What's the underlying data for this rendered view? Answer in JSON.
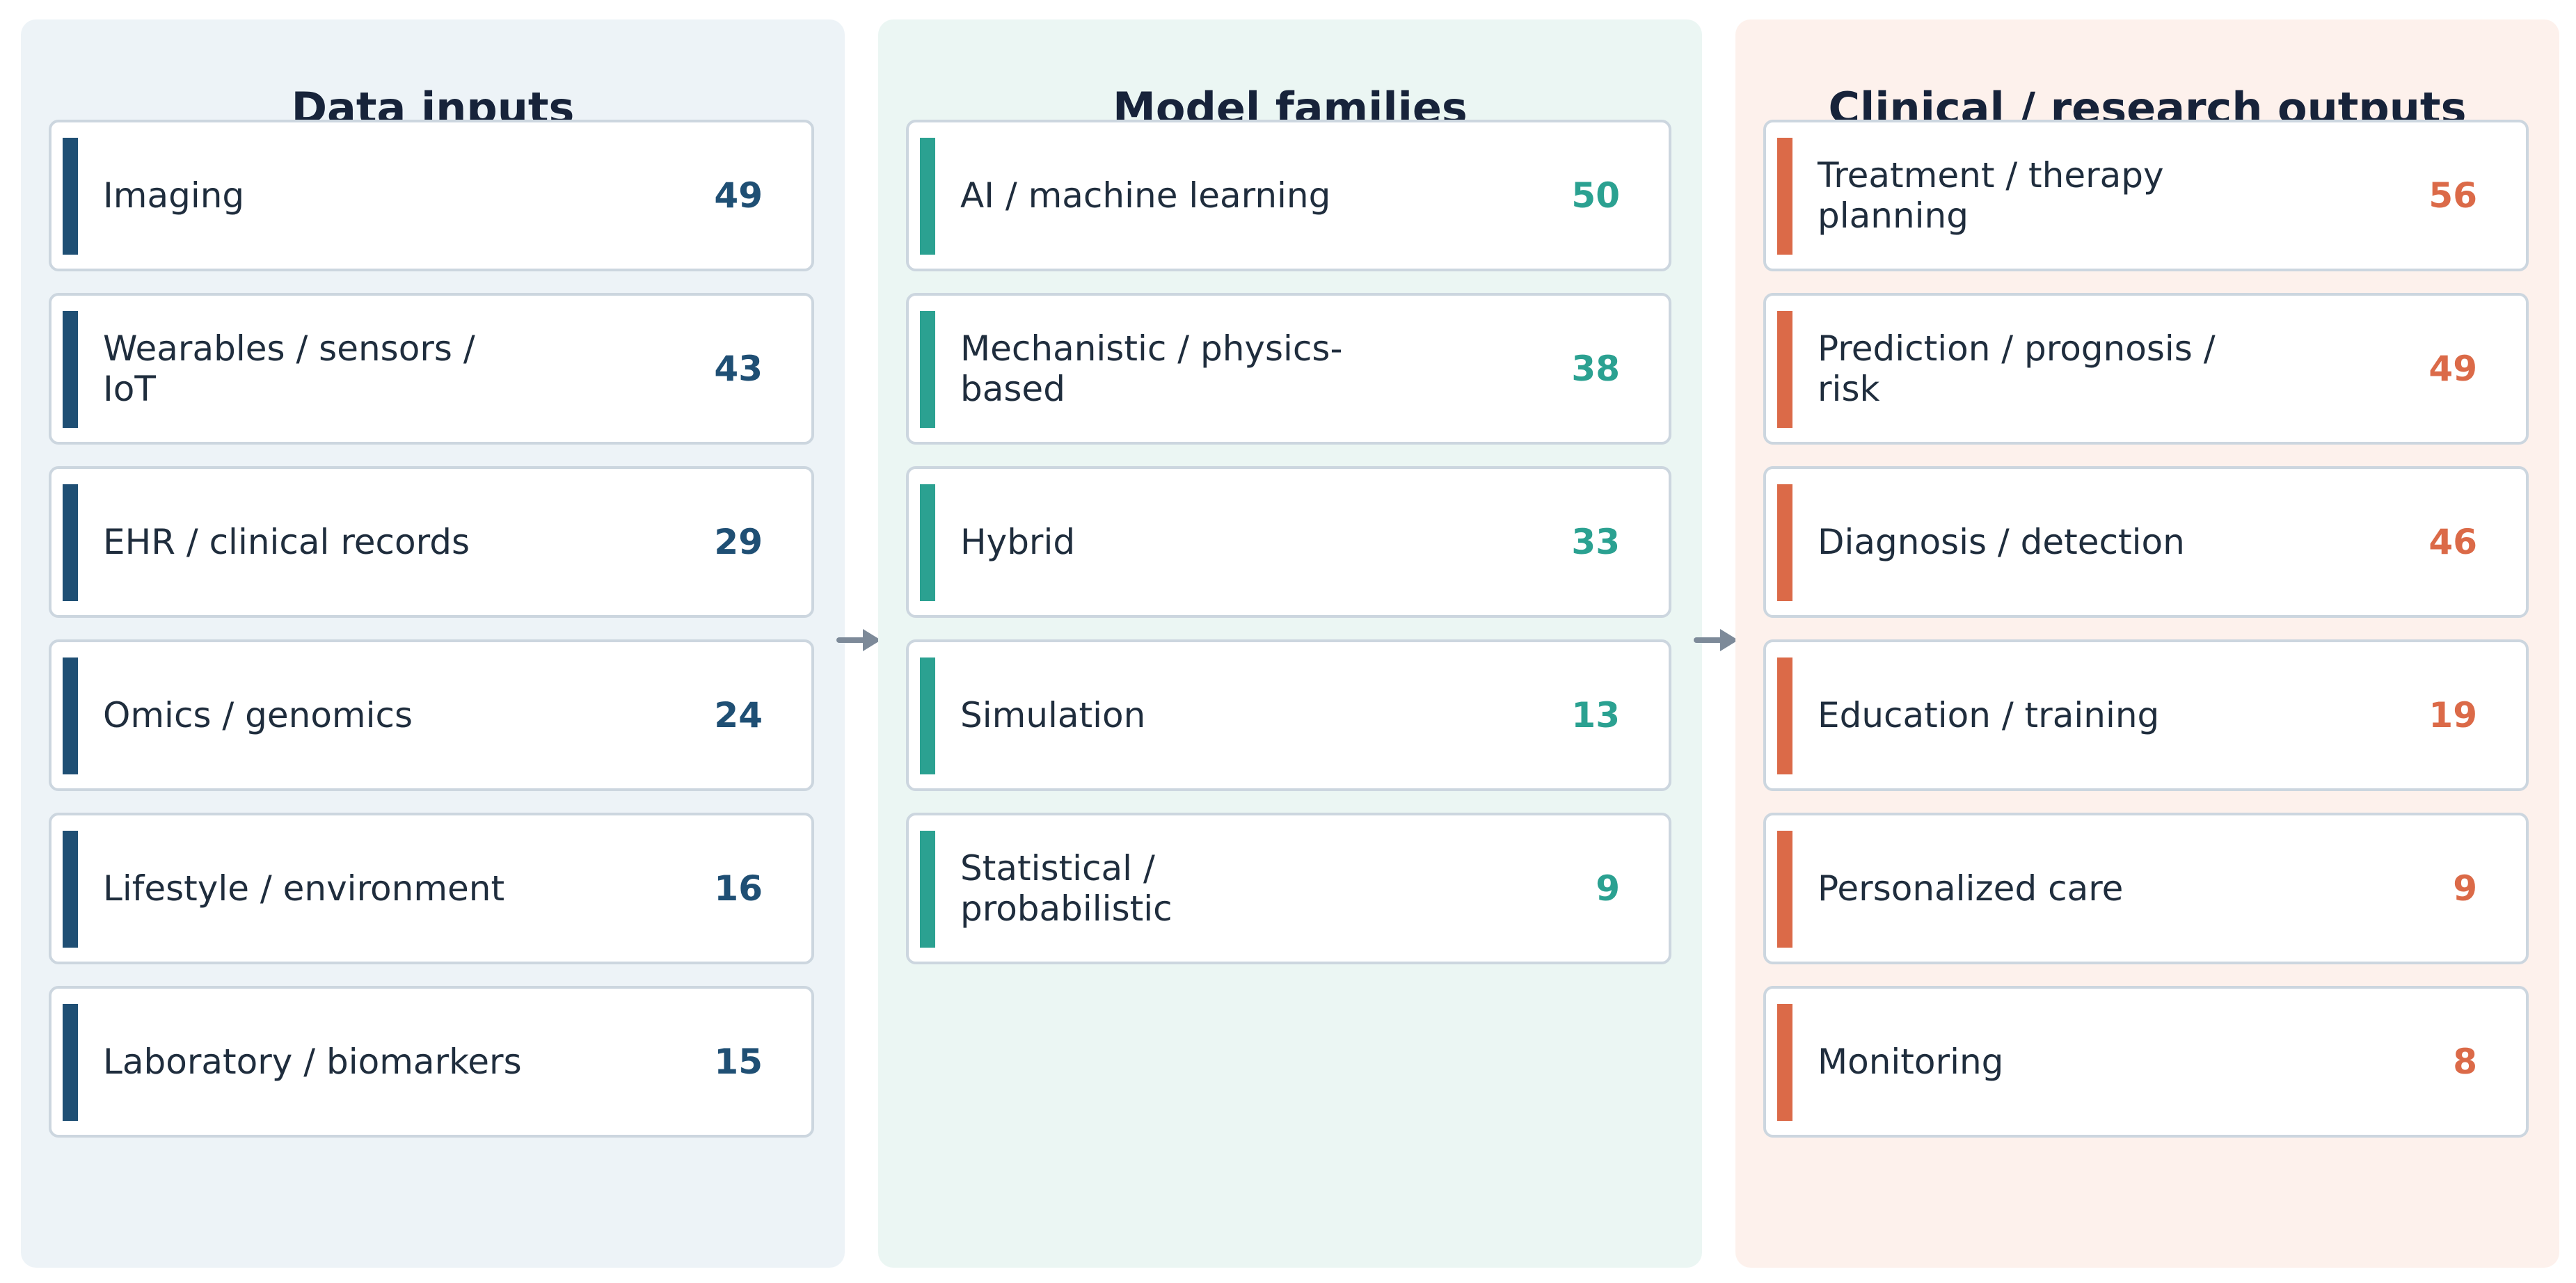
{
  "columns": [
    {
      "title": "Data inputs",
      "items": [
        {
          "label": "Imaging",
          "count": "49"
        },
        {
          "label": "Wearables / sensors / IoT",
          "count": "43"
        },
        {
          "label": "EHR / clinical records",
          "count": "29"
        },
        {
          "label": "Omics / genomics",
          "count": "24"
        },
        {
          "label": "Lifestyle / environment",
          "count": "16"
        },
        {
          "label": "Laboratory / biomarkers",
          "count": "15"
        }
      ]
    },
    {
      "title": "Model families",
      "items": [
        {
          "label": "AI / machine learning",
          "count": "50"
        },
        {
          "label": "Mechanistic / physics-based",
          "count": "38"
        },
        {
          "label": "Hybrid",
          "count": "33"
        },
        {
          "label": "Simulation",
          "count": "13"
        },
        {
          "label": "Statistical / probabilistic",
          "count": "9"
        }
      ]
    },
    {
      "title": "Clinical / research outputs",
      "items": [
        {
          "label": "Treatment / therapy planning",
          "count": "56"
        },
        {
          "label": "Prediction / prognosis / risk",
          "count": "49"
        },
        {
          "label": "Diagnosis / detection",
          "count": "46"
        },
        {
          "label": "Education / training",
          "count": "19"
        },
        {
          "label": "Personalized care",
          "count": "9"
        },
        {
          "label": "Monitoring",
          "count": "8"
        }
      ]
    }
  ],
  "colors": {
    "inputs_accent": "#1f4f74",
    "models_accent": "#2ba191",
    "outputs_accent": "#db6a48",
    "arrow": "#7d8a99"
  },
  "icons": {
    "flow_arrow": "right-arrow-icon"
  }
}
